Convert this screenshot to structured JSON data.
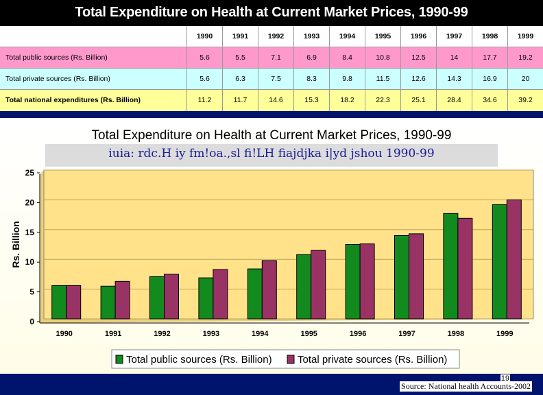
{
  "slide": {
    "title": "Total Expenditure on Health at Current Market Prices, 1990-99",
    "page_number": "19",
    "source": "Source: National health Accounts-2002"
  },
  "table": {
    "years": [
      "1990",
      "1991",
      "1992",
      "1993",
      "1994",
      "1995",
      "1996",
      "1997",
      "1998",
      "1999"
    ],
    "rows": [
      {
        "label": "Total public sources (Rs. Billion)",
        "values": [
          "5.6",
          "5.5",
          "7.1",
          "6.9",
          "8.4",
          "10.8",
          "12.5",
          "14",
          "17.7",
          "19.2"
        ]
      },
      {
        "label": "Total private sources (Rs. Billion)",
        "values": [
          "5.6",
          "6.3",
          "7.5",
          "8.3",
          "9.8",
          "11.5",
          "12.6",
          "14.3",
          "16.9",
          "20"
        ]
      },
      {
        "label": "Total national expenditures (Rs. Billion)",
        "values": [
          "11.2",
          "11.7",
          "14.6",
          "15.3",
          "18.2",
          "22.3",
          "25.1",
          "28.4",
          "34.6",
          "39.2"
        ]
      }
    ]
  },
  "chart_data": {
    "type": "bar",
    "title": "Total Expenditure on Health at Current Market Prices, 1990-99",
    "subtitle": "iuia: rdc.H iy fm!oa.,sl fi!LH fiajdjka i|yd jshou 1990-99",
    "categories": [
      "1990",
      "1991",
      "1992",
      "1993",
      "1994",
      "1995",
      "1996",
      "1997",
      "1998",
      "1999"
    ],
    "series": [
      {
        "name": "Total public sources (Rs. Billion)",
        "values": [
          5.6,
          5.5,
          7.1,
          6.9,
          8.4,
          10.8,
          12.5,
          14,
          17.7,
          19.2
        ],
        "color": "#128a1e"
      },
      {
        "name": "Total private sources (Rs. Billion)",
        "values": [
          5.6,
          6.3,
          7.5,
          8.3,
          9.8,
          11.5,
          12.6,
          14.3,
          16.9,
          20
        ],
        "color": "#993366"
      }
    ],
    "ylabel": "Rs. Billion",
    "xlabel": "",
    "ylim": [
      0,
      25
    ],
    "yticks": [
      "0",
      "5",
      "10",
      "15",
      "20",
      "25"
    ],
    "grid": true,
    "legend_position": "bottom",
    "plot_bg": "#ffe28a"
  }
}
